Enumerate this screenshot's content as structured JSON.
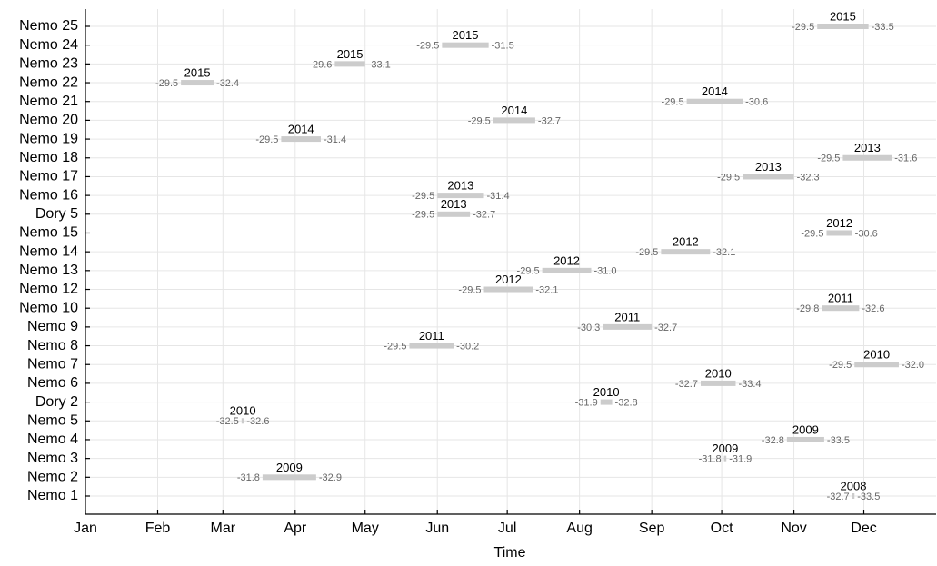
{
  "chart_data": {
    "type": "gantt",
    "x_label": "Time",
    "categories": [
      "Nemo 1",
      "Nemo 2",
      "Nemo 3",
      "Nemo 4",
      "Nemo 5",
      "Dory 2",
      "Nemo 6",
      "Nemo 7",
      "Nemo 8",
      "Nemo 9",
      "Nemo 10",
      "Nemo 12",
      "Nemo 13",
      "Nemo 14",
      "Nemo 15",
      "Dory 5",
      "Nemo 16",
      "Nemo 17",
      "Nemo 18",
      "Nemo 19",
      "Nemo 20",
      "Nemo 21",
      "Nemo 22",
      "Nemo 23",
      "Nemo 24",
      "Nemo 25"
    ],
    "start": [
      330,
      77,
      275,
      302,
      68,
      222,
      265,
      331,
      140,
      223,
      317,
      172,
      197,
      248,
      319,
      152,
      152,
      283,
      326,
      85,
      176,
      259,
      42,
      108,
      154,
      315
    ],
    "end": [
      331,
      100,
      276,
      318,
      69,
      227,
      280,
      350,
      159,
      244,
      333,
      193,
      218,
      269,
      330,
      166,
      172,
      305,
      347,
      102,
      194,
      283,
      56,
      121,
      174,
      337
    ],
    "years": [
      2008,
      2009,
      2009,
      2009,
      2010,
      2010,
      2010,
      2010,
      2011,
      2011,
      2011,
      2012,
      2012,
      2012,
      2012,
      2013,
      2013,
      2013,
      2013,
      2014,
      2014,
      2014,
      2015,
      2015,
      2015,
      2015
    ],
    "start_values": [
      -32.7,
      -31.8,
      -31.8,
      -32.8,
      -32.5,
      -31.9,
      -32.7,
      -29.5,
      -29.5,
      -30.3,
      -29.8,
      -29.5,
      -29.5,
      -29.5,
      -29.5,
      -29.5,
      -29.5,
      -29.5,
      -29.5,
      -29.5,
      -29.5,
      -29.5,
      -29.5,
      -29.6,
      -29.5,
      -29.5
    ],
    "end_values": [
      -33.5,
      -32.9,
      -31.9,
      -33.5,
      -32.6,
      -32.8,
      -33.4,
      {
        "value": -32,
        "label": "-32.0"
      },
      -30.2,
      -32.7,
      -32.6,
      -32.1,
      {
        "value": -31,
        "label": "-31.0"
      },
      -32.1,
      -30.6,
      -32.7,
      -31.4,
      -32.3,
      -31.6,
      -31.4,
      -32.7,
      -30.6,
      -32.4,
      -33.1,
      -31.5,
      -33.5
    ],
    "color": "#cccccc",
    "grid": true,
    "xlim": [
      1,
      366
    ],
    "xticks": [
      {
        "value": 1,
        "label": "Jan"
      },
      {
        "value": 32,
        "label": "Feb"
      },
      {
        "value": 60,
        "label": "Mar"
      },
      {
        "value": 91,
        "label": "Apr"
      },
      {
        "value": 121,
        "label": "May"
      },
      {
        "value": 152,
        "label": "Jun"
      },
      {
        "value": 182,
        "label": "Jul"
      },
      {
        "value": 213,
        "label": "Aug"
      },
      {
        "value": 244,
        "label": "Sep"
      },
      {
        "value": 274,
        "label": "Oct"
      },
      {
        "value": 305,
        "label": "Nov"
      },
      {
        "value": 335,
        "label": "Dec"
      }
    ]
  }
}
